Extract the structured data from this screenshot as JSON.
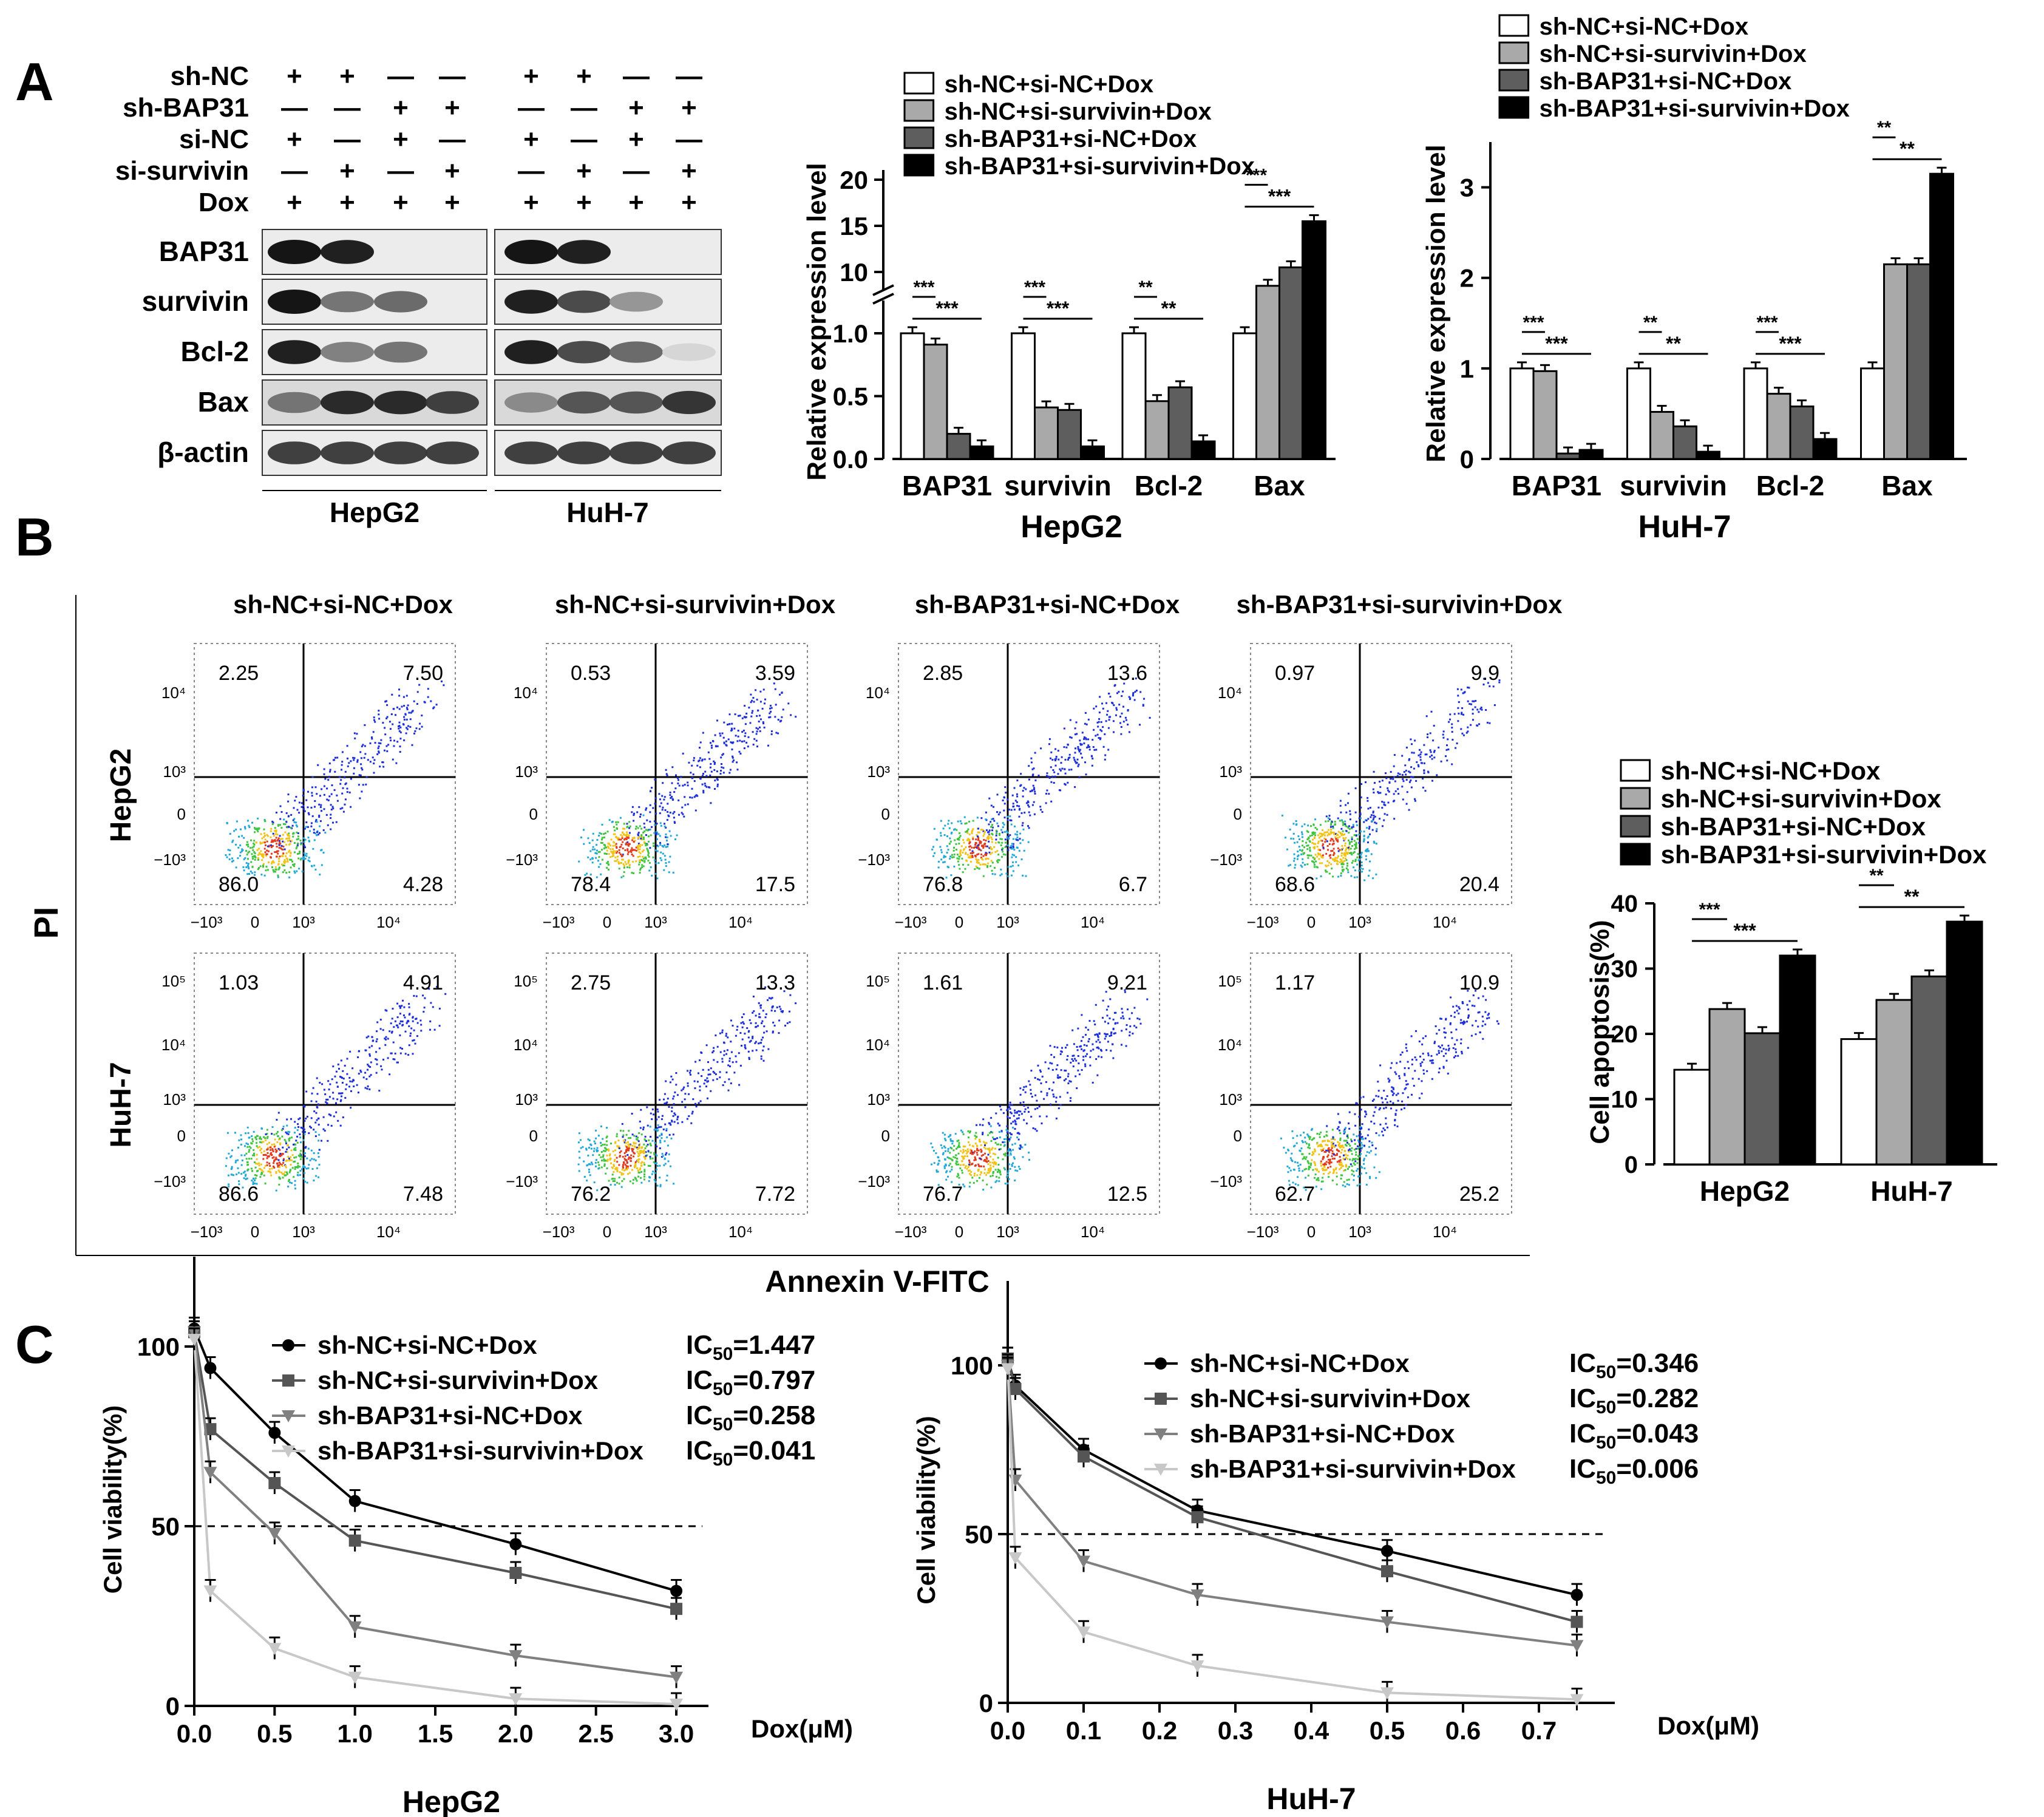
{
  "panel_labels": {
    "a": "A",
    "b": "B",
    "c": "C"
  },
  "groups": [
    "sh-NC+si-NC+Dox",
    "sh-NC+si-survivin+Dox",
    "sh-BAP31+si-NC+Dox",
    "sh-BAP31+si-survivin+Dox"
  ],
  "colors": {
    "g1": "#ffffff",
    "g2": "#a9a9a9",
    "g3": "#5e5e5e",
    "g4": "#000000"
  },
  "western": {
    "treatment_rows": [
      {
        "label": "sh-NC",
        "signs": [
          "+",
          "+",
          "—",
          "—",
          "+",
          "+",
          "—",
          "—"
        ]
      },
      {
        "label": "sh-BAP31",
        "signs": [
          "—",
          "—",
          "+",
          "+",
          "—",
          "—",
          "+",
          "+"
        ]
      },
      {
        "label": "si-NC",
        "signs": [
          "+",
          "—",
          "+",
          "—",
          "+",
          "—",
          "+",
          "—"
        ]
      },
      {
        "label": "si-survivin",
        "signs": [
          "—",
          "+",
          "—",
          "+",
          "—",
          "+",
          "—",
          "+"
        ]
      },
      {
        "label": "Dox",
        "signs": [
          "+",
          "+",
          "+",
          "+",
          "+",
          "+",
          "+",
          "+"
        ]
      }
    ],
    "proteins": [
      "BAP31",
      "survivin",
      "Bcl-2",
      "Bax",
      "β-actin"
    ],
    "band_intensity": {
      "HepG2": [
        [
          1.0,
          0.95,
          0.0,
          0.0
        ],
        [
          1.0,
          0.55,
          0.6,
          0.0
        ],
        [
          0.95,
          0.5,
          0.55,
          0.0
        ],
        [
          0.55,
          0.9,
          0.9,
          0.8
        ],
        [
          0.8,
          0.8,
          0.8,
          0.8
        ]
      ],
      "HuH-7": [
        [
          1.0,
          0.95,
          0.0,
          0.0
        ],
        [
          0.95,
          0.75,
          0.4,
          0.0
        ],
        [
          0.95,
          0.75,
          0.6,
          0.1
        ],
        [
          0.45,
          0.7,
          0.7,
          0.85
        ],
        [
          0.8,
          0.8,
          0.8,
          0.8
        ]
      ]
    },
    "cell_lines": [
      "HepG2",
      "HuH-7"
    ]
  },
  "flow": {
    "y_axis": "PI",
    "x_axis": "Annexin V-FITC",
    "rows": [
      "HepG2",
      "HuH-7"
    ],
    "ticks_x": [
      "−10³",
      "0",
      "10³",
      "10⁴"
    ],
    "ticks_y_hepg2": [
      "10⁴",
      "10³",
      "0",
      "−10³"
    ],
    "ticks_y_huh7": [
      "10⁵",
      "10⁴",
      "10³",
      "0",
      "−10³"
    ],
    "quadrants": {
      "HepG2": [
        [
          "2.25",
          "7.50",
          "86.0",
          "4.28"
        ],
        [
          "0.53",
          "3.59",
          "78.4",
          "17.5"
        ],
        [
          "2.85",
          "13.6",
          "76.8",
          "6.7"
        ],
        [
          "0.97",
          "9.9",
          "68.6",
          "20.4"
        ]
      ],
      "HuH-7": [
        [
          "1.03",
          "4.91",
          "86.6",
          "7.48"
        ],
        [
          "2.75",
          "13.3",
          "76.2",
          "7.72"
        ],
        [
          "1.61",
          "9.21",
          "76.7",
          "12.5"
        ],
        [
          "1.17",
          "10.9",
          "62.7",
          "25.2"
        ]
      ]
    }
  },
  "chart_data": [
    {
      "type": "bar",
      "ylabel": "Relative expression level",
      "xlabel": "HepG2",
      "categories": [
        "BAP31",
        "survivin",
        "Bcl-2",
        "Bax"
      ],
      "yticks_lower": [
        "0.0",
        "0.5",
        "1.0"
      ],
      "yticks_upper": [
        "10",
        "15",
        "20"
      ],
      "series": [
        {
          "name": "sh-NC+si-NC+Dox",
          "values": [
            1.0,
            1.0,
            1.0,
            1.0
          ]
        },
        {
          "name": "sh-NC+si-survivin+Dox",
          "values": [
            0.91,
            0.41,
            0.46,
            8.5
          ]
        },
        {
          "name": "sh-BAP31+si-NC+Dox",
          "values": [
            0.2,
            0.39,
            0.57,
            10.5
          ]
        },
        {
          "name": "sh-BAP31+si-survivin+Dox",
          "values": [
            0.1,
            0.1,
            0.14,
            15.5
          ]
        }
      ],
      "significance": [
        "***",
        "***",
        "**",
        "***"
      ]
    },
    {
      "type": "bar",
      "ylabel": "Relative expression level",
      "xlabel": "HuH-7",
      "categories": [
        "BAP31",
        "survivin",
        "Bcl-2",
        "Bax"
      ],
      "yticks": [
        "0",
        "1",
        "2",
        "3"
      ],
      "ylim": [
        0,
        3.5
      ],
      "series": [
        {
          "name": "sh-NC+si-NC+Dox",
          "values": [
            1.0,
            1.0,
            1.0,
            1.0
          ]
        },
        {
          "name": "sh-NC+si-survivin+Dox",
          "values": [
            0.97,
            0.52,
            0.72,
            2.15
          ]
        },
        {
          "name": "sh-BAP31+si-NC+Dox",
          "values": [
            0.06,
            0.36,
            0.58,
            2.15
          ]
        },
        {
          "name": "sh-BAP31+si-survivin+Dox",
          "values": [
            0.1,
            0.08,
            0.22,
            3.15
          ]
        }
      ],
      "significance": [
        "***",
        "**",
        "***",
        "**"
      ]
    },
    {
      "type": "bar",
      "ylabel": "Cell apoptosis(%)",
      "categories": [
        "HepG2",
        "HuH-7"
      ],
      "yticks": [
        "0",
        "10",
        "20",
        "30",
        "40"
      ],
      "ylim": [
        0,
        40
      ],
      "series": [
        {
          "name": "sh-NC+si-NC+Dox",
          "values": [
            14.5,
            19.2
          ]
        },
        {
          "name": "sh-NC+si-survivin+Dox",
          "values": [
            23.8,
            25.2
          ]
        },
        {
          "name": "sh-BAP31+si-NC+Dox",
          "values": [
            20.1,
            28.8
          ]
        },
        {
          "name": "sh-BAP31+si-survivin+Dox",
          "values": [
            32.0,
            37.2
          ]
        }
      ],
      "significance": [
        "***",
        "**",
        "**",
        "***"
      ]
    },
    {
      "type": "line",
      "title": "HepG2",
      "ylabel": "Cell viability(%)",
      "xlabel": "Dox(μM)",
      "x": [
        0,
        0.1,
        0.5,
        1.0,
        2.0,
        3.0
      ],
      "xticks": [
        "0.0",
        "0.5",
        "1.0",
        "1.5",
        "2.0",
        "2.5",
        "3.0"
      ],
      "yticks": [
        "0",
        "50",
        "100"
      ],
      "xlim": [
        0,
        3.2
      ],
      "ylim": [
        0,
        125
      ],
      "series": [
        {
          "name": "sh-NC+si-NC+Dox",
          "ic50": "1.447",
          "values": [
            105,
            94,
            76,
            57,
            45,
            32
          ]
        },
        {
          "name": "sh-NC+si-survivin+Dox",
          "ic50": "0.797",
          "values": [
            104,
            77,
            62,
            46,
            37,
            27
          ]
        },
        {
          "name": "sh-BAP31+si-NC+Dox",
          "ic50": "0.258",
          "values": [
            104,
            65,
            48,
            22,
            14,
            8
          ]
        },
        {
          "name": "sh-BAP31+si-survivin+Dox",
          "ic50": "0.041",
          "values": [
            102,
            32,
            16,
            8,
            2,
            0.5
          ]
        }
      ]
    },
    {
      "type": "line",
      "title": "HuH-7",
      "ylabel": "Cell viability(%)",
      "xlabel": "Dox(μM)",
      "x": [
        0,
        0.01,
        0.1,
        0.25,
        0.5,
        0.75
      ],
      "xticks": [
        "0.0",
        "0.1",
        "0.2",
        "0.3",
        "0.4",
        "0.5",
        "0.6",
        "0.7"
      ],
      "yticks": [
        "0",
        "50",
        "100"
      ],
      "xlim": [
        0,
        0.8
      ],
      "ylim": [
        0,
        125
      ],
      "series": [
        {
          "name": "sh-NC+si-NC+Dox",
          "ic50": "0.346",
          "values": [
            102,
            94,
            75,
            57,
            45,
            32
          ]
        },
        {
          "name": "sh-NC+si-survivin+Dox",
          "ic50": "0.282",
          "values": [
            102,
            93,
            73,
            55,
            39,
            24
          ]
        },
        {
          "name": "sh-BAP31+si-NC+Dox",
          "ic50": "0.043",
          "values": [
            100,
            66,
            42,
            32,
            24,
            17
          ]
        },
        {
          "name": "sh-BAP31+si-survivin+Dox",
          "ic50": "0.006",
          "values": [
            99,
            43,
            21,
            11,
            3,
            1
          ]
        }
      ]
    }
  ],
  "text": {
    "ic50_prefix": "IC",
    "ic50_sub": "50",
    "dashed_line": "50"
  }
}
